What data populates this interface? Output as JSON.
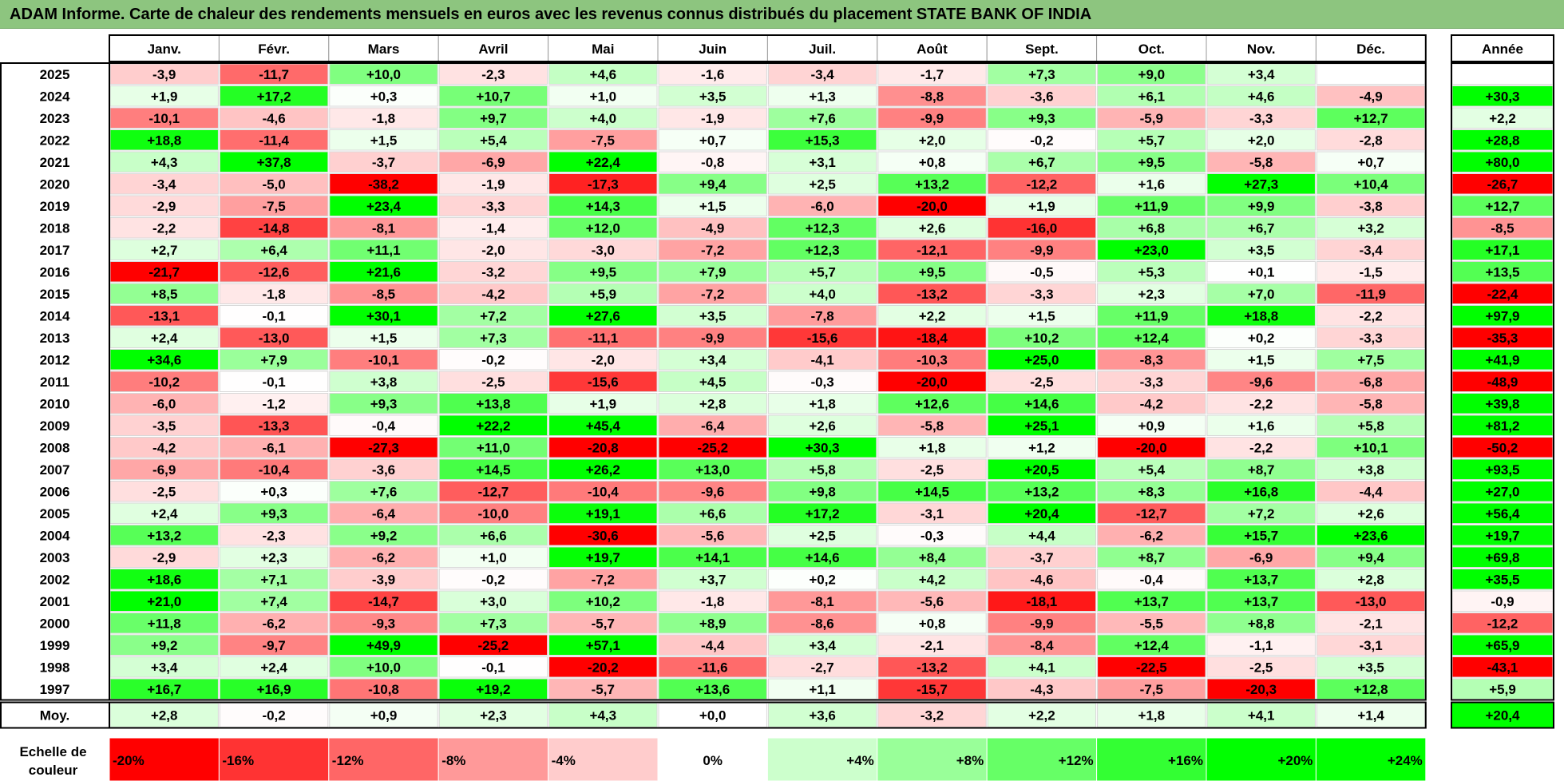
{
  "chart_data": {
    "type": "heatmap",
    "title": "ADAM Informe. Carte de chaleur des rendements mensuels en euros avec les revenus connus distribués du placement STATE BANK OF INDIA",
    "months": [
      "Janv.",
      "Févr.",
      "Mars",
      "Avril",
      "Mai",
      "Juin",
      "Juil.",
      "Août",
      "Sept.",
      "Oct.",
      "Nov.",
      "Déc."
    ],
    "year_header": "Année",
    "years": [
      "2025",
      "2024",
      "2023",
      "2022",
      "2021",
      "2020",
      "2019",
      "2018",
      "2017",
      "2016",
      "2015",
      "2014",
      "2013",
      "2012",
      "2011",
      "2010",
      "2009",
      "2008",
      "2007",
      "2006",
      "2005",
      "2004",
      "2003",
      "2002",
      "2001",
      "2000",
      "1999",
      "1998",
      "1997"
    ],
    "values": [
      [
        "-3,9",
        "-11,7",
        "+10,0",
        "-2,3",
        "+4,6",
        "-1,6",
        "-3,4",
        "-1,7",
        "+7,3",
        "+9,0",
        "+3,4",
        ""
      ],
      [
        "+1,9",
        "+17,2",
        "+0,3",
        "+10,7",
        "+1,0",
        "+3,5",
        "+1,3",
        "-8,8",
        "-3,6",
        "+6,1",
        "+4,6",
        "-4,9"
      ],
      [
        "-10,1",
        "-4,6",
        "-1,8",
        "+9,7",
        "+4,0",
        "-1,9",
        "+7,6",
        "-9,9",
        "+9,3",
        "-5,9",
        "-3,3",
        "+12,7"
      ],
      [
        "+18,8",
        "-11,4",
        "+1,5",
        "+5,4",
        "-7,5",
        "+0,7",
        "+15,3",
        "+2,0",
        "-0,2",
        "+5,7",
        "+2,0",
        "-2,8"
      ],
      [
        "+4,3",
        "+37,8",
        "-3,7",
        "-6,9",
        "+22,4",
        "-0,8",
        "+3,1",
        "+0,8",
        "+6,7",
        "+9,5",
        "-5,8",
        "+0,7"
      ],
      [
        "-3,4",
        "-5,0",
        "-38,2",
        "-1,9",
        "-17,3",
        "+9,4",
        "+2,5",
        "+13,2",
        "-12,2",
        "+1,6",
        "+27,3",
        "+10,4"
      ],
      [
        "-2,9",
        "-7,5",
        "+23,4",
        "-3,3",
        "+14,3",
        "+1,5",
        "-6,0",
        "-20,0",
        "+1,9",
        "+11,9",
        "+9,9",
        "-3,8"
      ],
      [
        "-2,2",
        "-14,8",
        "-8,1",
        "-1,4",
        "+12,0",
        "-4,9",
        "+12,3",
        "+2,6",
        "-16,0",
        "+6,8",
        "+6,7",
        "+3,2"
      ],
      [
        "+2,7",
        "+6,4",
        "+11,1",
        "-2,0",
        "-3,0",
        "-7,2",
        "+12,3",
        "-12,1",
        "-9,9",
        "+23,0",
        "+3,5",
        "-3,4"
      ],
      [
        "-21,7",
        "-12,6",
        "+21,6",
        "-3,2",
        "+9,5",
        "+7,9",
        "+5,7",
        "+9,5",
        "-0,5",
        "+5,3",
        "+0,1",
        "-1,5"
      ],
      [
        "+8,5",
        "-1,8",
        "-8,5",
        "-4,2",
        "+5,9",
        "-7,2",
        "+4,0",
        "-13,2",
        "-3,3",
        "+2,3",
        "+7,0",
        "-11,9"
      ],
      [
        "-13,1",
        "-0,1",
        "+30,1",
        "+7,2",
        "+27,6",
        "+3,5",
        "-7,8",
        "+2,2",
        "+1,5",
        "+11,9",
        "+18,8",
        "-2,2"
      ],
      [
        "+2,4",
        "-13,0",
        "+1,5",
        "+7,3",
        "-11,1",
        "-9,9",
        "-15,6",
        "-18,4",
        "+10,2",
        "+12,4",
        "+0,2",
        "-3,3"
      ],
      [
        "+34,6",
        "+7,9",
        "-10,1",
        "-0,2",
        "-2,0",
        "+3,4",
        "-4,1",
        "-10,3",
        "+25,0",
        "-8,3",
        "+1,5",
        "+7,5"
      ],
      [
        "-10,2",
        "-0,1",
        "+3,8",
        "-2,5",
        "-15,6",
        "+4,5",
        "-0,3",
        "-20,0",
        "-2,5",
        "-3,3",
        "-9,6",
        "-6,8"
      ],
      [
        "-6,0",
        "-1,2",
        "+9,3",
        "+13,8",
        "+1,9",
        "+2,8",
        "+1,8",
        "+12,6",
        "+14,6",
        "-4,2",
        "-2,2",
        "-5,8"
      ],
      [
        "-3,5",
        "-13,3",
        "-0,4",
        "+22,2",
        "+45,4",
        "-6,4",
        "+2,6",
        "-5,8",
        "+25,1",
        "+0,9",
        "+1,6",
        "+5,8"
      ],
      [
        "-4,2",
        "-6,1",
        "-27,3",
        "+11,0",
        "-20,8",
        "-25,2",
        "+30,3",
        "+1,8",
        "+1,2",
        "-20,0",
        "-2,2",
        "+10,1"
      ],
      [
        "-6,9",
        "-10,4",
        "-3,6",
        "+14,5",
        "+26,2",
        "+13,0",
        "+5,8",
        "-2,5",
        "+20,5",
        "+5,4",
        "+8,7",
        "+3,8"
      ],
      [
        "-2,5",
        "+0,3",
        "+7,6",
        "-12,7",
        "-10,4",
        "-9,6",
        "+9,8",
        "+14,5",
        "+13,2",
        "+8,3",
        "+16,8",
        "-4,4"
      ],
      [
        "+2,4",
        "+9,3",
        "-6,4",
        "-10,0",
        "+19,1",
        "+6,6",
        "+17,2",
        "-3,1",
        "+20,4",
        "-12,7",
        "+7,2",
        "+2,6"
      ],
      [
        "+13,2",
        "-2,3",
        "+9,2",
        "+6,6",
        "-30,6",
        "-5,6",
        "+2,5",
        "-0,3",
        "+4,4",
        "-6,2",
        "+15,7",
        "+23,6"
      ],
      [
        "-2,9",
        "+2,3",
        "-6,2",
        "+1,0",
        "+19,7",
        "+14,1",
        "+14,6",
        "+8,4",
        "-3,7",
        "+8,7",
        "-6,9",
        "+9,4"
      ],
      [
        "+18,6",
        "+7,1",
        "-3,9",
        "-0,2",
        "-7,2",
        "+3,7",
        "+0,2",
        "+4,2",
        "-4,6",
        "-0,4",
        "+13,7",
        "+2,8"
      ],
      [
        "+21,0",
        "+7,4",
        "-14,7",
        "+3,0",
        "+10,2",
        "-1,8",
        "-8,1",
        "-5,6",
        "-18,1",
        "+13,7",
        "+13,7",
        "-13,0"
      ],
      [
        "+11,8",
        "-6,2",
        "-9,3",
        "+7,3",
        "-5,7",
        "+8,9",
        "-8,6",
        "+0,8",
        "-9,9",
        "-5,5",
        "+8,8",
        "-2,1"
      ],
      [
        "+9,2",
        "-9,7",
        "+49,9",
        "-25,2",
        "+57,1",
        "-4,4",
        "+3,4",
        "-2,1",
        "-8,4",
        "+12,4",
        "-1,1",
        "-3,1"
      ],
      [
        "+3,4",
        "+2,4",
        "+10,0",
        "-0,1",
        "-20,2",
        "-11,6",
        "-2,7",
        "-13,2",
        "+4,1",
        "-22,5",
        "-2,5",
        "+3,5"
      ],
      [
        "+16,7",
        "+16,9",
        "-10,8",
        "+19,2",
        "-5,7",
        "+13,6",
        "+1,1",
        "-15,7",
        "-4,3",
        "-7,5",
        "-20,3",
        "+12,8"
      ]
    ],
    "annual": [
      "",
      "+30,3",
      "+2,2",
      "+28,8",
      "+80,0",
      "-26,7",
      "+12,7",
      "-8,5",
      "+17,1",
      "+13,5",
      "-22,4",
      "+97,9",
      "-35,3",
      "+41,9",
      "-48,9",
      "+39,8",
      "+81,2",
      "-50,2",
      "+93,5",
      "+27,0",
      "+56,4",
      "+19,7",
      "+69,8",
      "+35,5",
      "-0,9",
      "-12,2",
      "+65,9",
      "-43,1",
      "+5,9"
    ],
    "average_label": "Moy.",
    "average": [
      "+2,8",
      "-0,2",
      "+0,9",
      "+2,3",
      "+4,3",
      "+0,0",
      "+3,6",
      "-3,2",
      "+2,2",
      "+1,8",
      "+4,1",
      "+1,4"
    ],
    "average_annual": "+20,4",
    "scale_label": [
      "Echelle de",
      "couleur"
    ],
    "scale": [
      "-20%",
      "-16%",
      "-12%",
      "-8%",
      "-4%",
      "0%",
      "+4%",
      "+8%",
      "+12%",
      "+16%",
      "+20%",
      "+24%"
    ],
    "colors": {
      "negative": "#ff0000",
      "neutral": "#ffffff",
      "positive": "#00ff00",
      "title_bg": "#8dc57f"
    }
  }
}
